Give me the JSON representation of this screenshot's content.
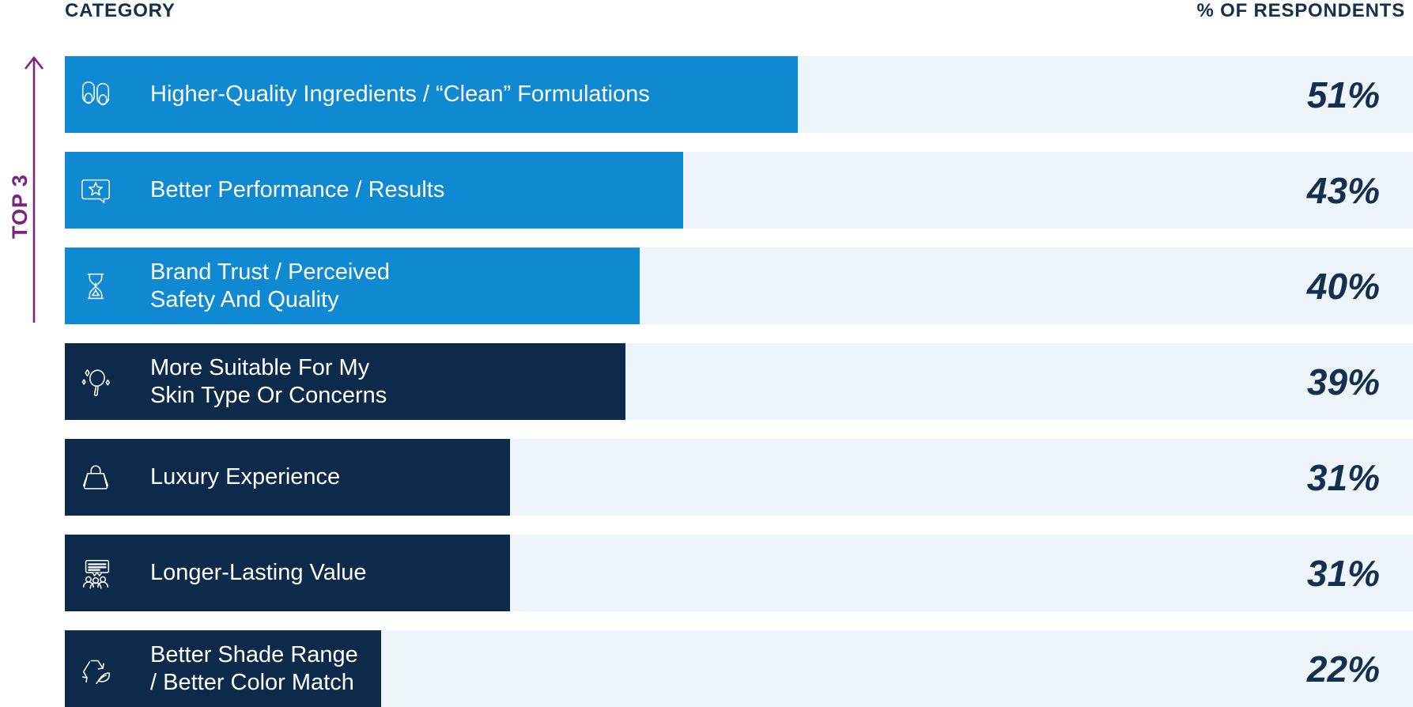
{
  "header": {
    "left": "CATEGORY",
    "right": "% OF RESPONDENTS"
  },
  "annotation": {
    "label": "TOP 3",
    "covers_rows": 3
  },
  "colors": {
    "top3_bar": "#0F89D2",
    "other_bar": "#0E2A4A",
    "track": "#EDF4FA",
    "heading_text": "#14304F",
    "value_text": "#14304F",
    "annotation_purple": "#7B2483",
    "bar_text": "#FFFFFF"
  },
  "chart_data": {
    "type": "bar",
    "orientation": "horizontal",
    "title": "",
    "column_headers": [
      "CATEGORY",
      "% OF RESPONDENTS"
    ],
    "categories": [
      "Higher-Quality Ingredients / “Clean” Formulations",
      "Better Performance / Results",
      "Brand Trust / Perceived Safety And Quality",
      "More Suitable For My Skin Type Or Concerns",
      "Luxury Experience",
      "Longer-Lasting Value",
      "Better Shade Range / Better Color Match"
    ],
    "values": [
      51,
      43,
      40,
      39,
      31,
      31,
      22
    ],
    "value_labels": [
      "51%",
      "43%",
      "40%",
      "39%",
      "31%",
      "31%",
      "22%"
    ],
    "xlim": [
      0,
      100
    ],
    "grid": false,
    "legend": "none",
    "annotation": "TOP 3 (arrow spanning first three bars)",
    "highlight": "first 3 bars azure blue, remaining bars dark navy"
  },
  "rows": [
    {
      "lines": [
        "Higher-Quality Ingredients / “Clean” Formulations"
      ],
      "value": 51,
      "value_label": "51%",
      "icon": "slippers-icon",
      "tier": "top3"
    },
    {
      "lines": [
        "Better Performance / Results"
      ],
      "value": 43,
      "value_label": "43%",
      "icon": "star-review-bubble-icon",
      "tier": "top3"
    },
    {
      "lines": [
        "Brand Trust / Perceived",
        "Safety And Quality"
      ],
      "value": 40,
      "value_label": "40%",
      "icon": "hourglass-icon",
      "tier": "top3"
    },
    {
      "lines": [
        "More Suitable For My",
        "Skin Type Or Concerns"
      ],
      "value": 39,
      "value_label": "39%",
      "icon": "hand-mirror-sparkles-icon",
      "tier": "other"
    },
    {
      "lines": [
        "Luxury Experience"
      ],
      "value": 31,
      "value_label": "31%",
      "icon": "handbag-icon",
      "tier": "other"
    },
    {
      "lines": [
        "Longer-Lasting Value"
      ],
      "value": 31,
      "value_label": "31%",
      "icon": "audience-banner-icon",
      "tier": "other"
    },
    {
      "lines": [
        "Better Shade Range",
        "/ Better Color Match"
      ],
      "value": 22,
      "value_label": "22%",
      "icon": "recycle-leaf-icon",
      "tier": "other"
    }
  ]
}
